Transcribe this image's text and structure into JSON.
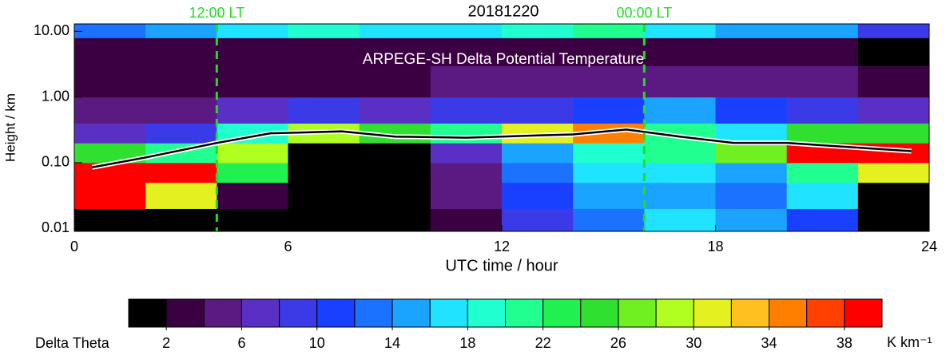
{
  "chart_data": {
    "type": "heatmap",
    "title": "20181220",
    "annotation": "ARPEGE-SH Delta Potential Temperature",
    "xlabel": "UTC time / hour",
    "ylabel": "Height / km",
    "xlim": [
      0,
      24
    ],
    "xticks": [
      0,
      6,
      12,
      18,
      24
    ],
    "ylim": [
      0.009,
      13
    ],
    "log_y": true,
    "yticks": [
      0.01,
      {
        "value": 0.1,
        "label": "0.10"
      },
      {
        "value": 1,
        "label": "1.00"
      },
      {
        "value": 10,
        "label": "10.00"
      }
    ],
    "x_edges": [
      0,
      2,
      4,
      6,
      8,
      10,
      12,
      14,
      16,
      18,
      20,
      22,
      24
    ],
    "y_edges": [
      0.009,
      0.02,
      0.05,
      0.1,
      0.2,
      0.4,
      1,
      3,
      8,
      13
    ],
    "z": [
      [
        1,
        1,
        1,
        1,
        1,
        3,
        8,
        12,
        16,
        14,
        10,
        1
      ],
      [
        40,
        30,
        2,
        1,
        1,
        4,
        10,
        14,
        14,
        12,
        16,
        1
      ],
      [
        40,
        38,
        22,
        1,
        1,
        4,
        12,
        16,
        16,
        14,
        20,
        30
      ],
      [
        24,
        20,
        28,
        1,
        1,
        6,
        14,
        18,
        20,
        26,
        38,
        38
      ],
      [
        6,
        8,
        18,
        28,
        24,
        20,
        30,
        34,
        20,
        16,
        24,
        24
      ],
      [
        5,
        5,
        6,
        8,
        7,
        8,
        8,
        10,
        14,
        10,
        8,
        6
      ],
      [
        3,
        3,
        3,
        3,
        3,
        4,
        4,
        5,
        5,
        4,
        4,
        2
      ],
      [
        2,
        2,
        2,
        2,
        2,
        2,
        2,
        2,
        2,
        2,
        2,
        1
      ],
      [
        12,
        14,
        16,
        18,
        16,
        16,
        18,
        20,
        16,
        14,
        14,
        8
      ]
    ],
    "line": {
      "x": [
        0.5,
        2,
        4,
        5.5,
        7.5,
        9,
        11,
        13,
        14,
        15.5,
        17,
        18.5,
        20,
        23.5
      ],
      "y": [
        0.085,
        0.12,
        0.2,
        0.28,
        0.3,
        0.25,
        0.24,
        0.26,
        0.27,
        0.32,
        0.25,
        0.2,
        0.2,
        0.15
      ]
    },
    "vlines": [
      {
        "x": 4,
        "label": "12:00 LT",
        "color": "#22dd22"
      },
      {
        "x": 16,
        "label": "00:00 LT",
        "color": "#22dd22"
      }
    ],
    "colorbar": {
      "label": "Delta Theta",
      "unit": "K km⁻¹",
      "levels": [
        0,
        2,
        4,
        6,
        8,
        10,
        12,
        14,
        16,
        18,
        20,
        22,
        24,
        26,
        28,
        30,
        32,
        34,
        36,
        38,
        40
      ],
      "ticks": [
        2,
        6,
        10,
        14,
        18,
        22,
        26,
        30,
        34,
        38
      ],
      "colors": [
        "#000000",
        "#3a0042",
        "#5a1a82",
        "#5a30c4",
        "#3a3ae6",
        "#1a40ff",
        "#1a72ff",
        "#1aa4ff",
        "#20e4ff",
        "#20ffd0",
        "#20ff90",
        "#20f050",
        "#30e030",
        "#70f020",
        "#b0ff20",
        "#e4f020",
        "#ffc020",
        "#ff8000",
        "#ff4000",
        "#ff0000"
      ]
    }
  }
}
